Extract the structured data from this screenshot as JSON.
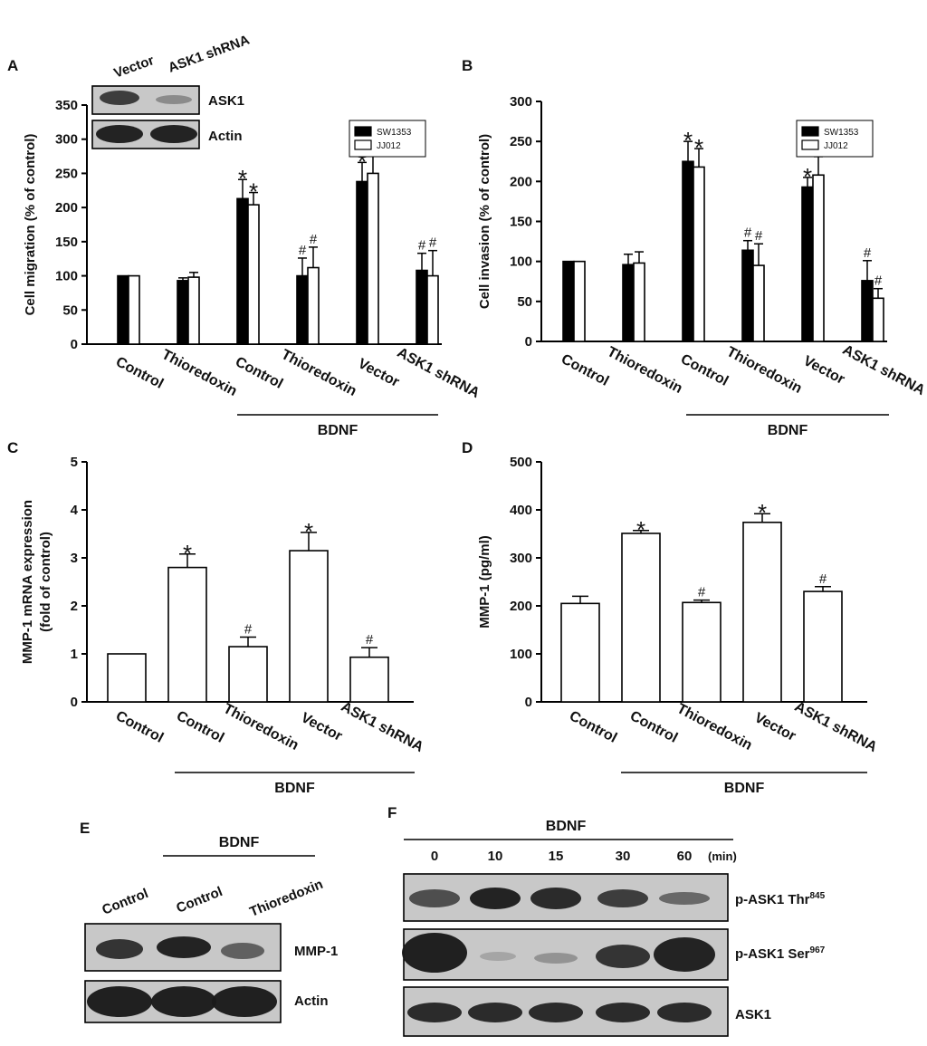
{
  "chart_data": [
    {
      "panel": "A",
      "type": "bar",
      "ylabel": "Cell migration (% of control)",
      "yticks": [
        0,
        50,
        100,
        150,
        200,
        250,
        300,
        350
      ],
      "ylim": [
        0,
        350
      ],
      "categories": [
        "Control",
        "Thioredoxin",
        "Control",
        "Thioredoxin",
        "Vector",
        "ASK1 shRNA"
      ],
      "group_label": "BDNF",
      "series": [
        {
          "name": "SW1353",
          "fill": "#000000",
          "values": [
            100,
            93,
            213,
            100,
            238,
            108
          ],
          "errors": [
            0,
            4,
            28,
            26,
            28,
            25
          ],
          "marks": [
            "",
            "",
            "*",
            "#",
            "*",
            "#"
          ]
        },
        {
          "name": "JJ012",
          "fill": "#ffffff",
          "values": [
            100,
            98,
            204,
            112,
            250,
            100
          ],
          "errors": [
            0,
            7,
            18,
            30,
            36,
            37
          ],
          "marks": [
            "",
            "",
            "*",
            "#",
            "*",
            "#"
          ]
        }
      ],
      "inset": {
        "lanes": [
          "Vector",
          "ASK1 shRNA"
        ],
        "bands": [
          "ASK1",
          "Actin"
        ]
      }
    },
    {
      "panel": "B",
      "type": "bar",
      "ylabel": "Cell invasion (% of control)",
      "yticks": [
        0,
        50,
        100,
        150,
        200,
        250,
        300
      ],
      "ylim": [
        0,
        300
      ],
      "categories": [
        "Control",
        "Thioredoxin",
        "Control",
        "Thioredoxin",
        "Vector",
        "ASK1 shRNA"
      ],
      "group_label": "BDNF",
      "series": [
        {
          "name": "SW1353",
          "fill": "#000000",
          "values": [
            100,
            96,
            225,
            114,
            193,
            76
          ],
          "errors": [
            0,
            13,
            25,
            12,
            12,
            25
          ],
          "marks": [
            "",
            "",
            "*",
            "#",
            "*",
            "#"
          ]
        },
        {
          "name": "JJ012",
          "fill": "#ffffff",
          "values": [
            100,
            98,
            218,
            95,
            208,
            54
          ],
          "errors": [
            0,
            14,
            23,
            27,
            23,
            12
          ],
          "marks": [
            "",
            "",
            "*",
            "#",
            "*",
            "#"
          ]
        }
      ]
    },
    {
      "panel": "C",
      "type": "bar",
      "ylabel": "MMP-1 mRNA expression",
      "ylabel2": "(fold of control)",
      "yticks": [
        0,
        1,
        2,
        3,
        4,
        5
      ],
      "ylim": [
        0,
        5
      ],
      "categories": [
        "Control",
        "Control",
        "Thioredoxin",
        "Vector",
        "ASK1 shRNA"
      ],
      "group_label": "BDNF",
      "series": [
        {
          "name": "",
          "fill": "#ffffff",
          "values": [
            1.0,
            2.8,
            1.15,
            3.15,
            0.93
          ],
          "errors": [
            0,
            0.28,
            0.2,
            0.38,
            0.2
          ],
          "marks": [
            "",
            "*",
            "#",
            "*",
            "#"
          ]
        }
      ]
    },
    {
      "panel": "D",
      "type": "bar",
      "ylabel": "MMP-1 (pg/ml)",
      "yticks": [
        0,
        100,
        200,
        300,
        400,
        500
      ],
      "ylim": [
        0,
        500
      ],
      "categories": [
        "Control",
        "Control",
        "Thioredoxin",
        "Vector",
        "ASK1 shRNA"
      ],
      "group_label": "BDNF",
      "series": [
        {
          "name": "",
          "fill": "#ffffff",
          "values": [
            205,
            351,
            207,
            374,
            230
          ],
          "errors": [
            15,
            6,
            5,
            18,
            10
          ],
          "marks": [
            "",
            "*",
            "#",
            "*",
            "#"
          ]
        }
      ]
    }
  ],
  "blots": {
    "E": {
      "letter": "E",
      "group_label": "BDNF",
      "lanes": [
        "Control",
        "Control",
        "Thioredoxin"
      ],
      "bands": [
        "MMP-1",
        "Actin"
      ]
    },
    "F": {
      "letter": "F",
      "group_label": "BDNF",
      "times": [
        "0",
        "10",
        "15",
        "30",
        "60"
      ],
      "unit": "(min)",
      "bands": [
        {
          "name": "p-ASK1 Thr",
          "sup": "845"
        },
        {
          "name": "p-ASK1 Ser",
          "sup": "967"
        },
        {
          "name": "ASK1",
          "sup": ""
        }
      ]
    }
  },
  "colors": {
    "ink": "#000000",
    "paper": "#ffffff",
    "band": "#1a1a1a",
    "blot_bg": "#c8c8c8"
  }
}
